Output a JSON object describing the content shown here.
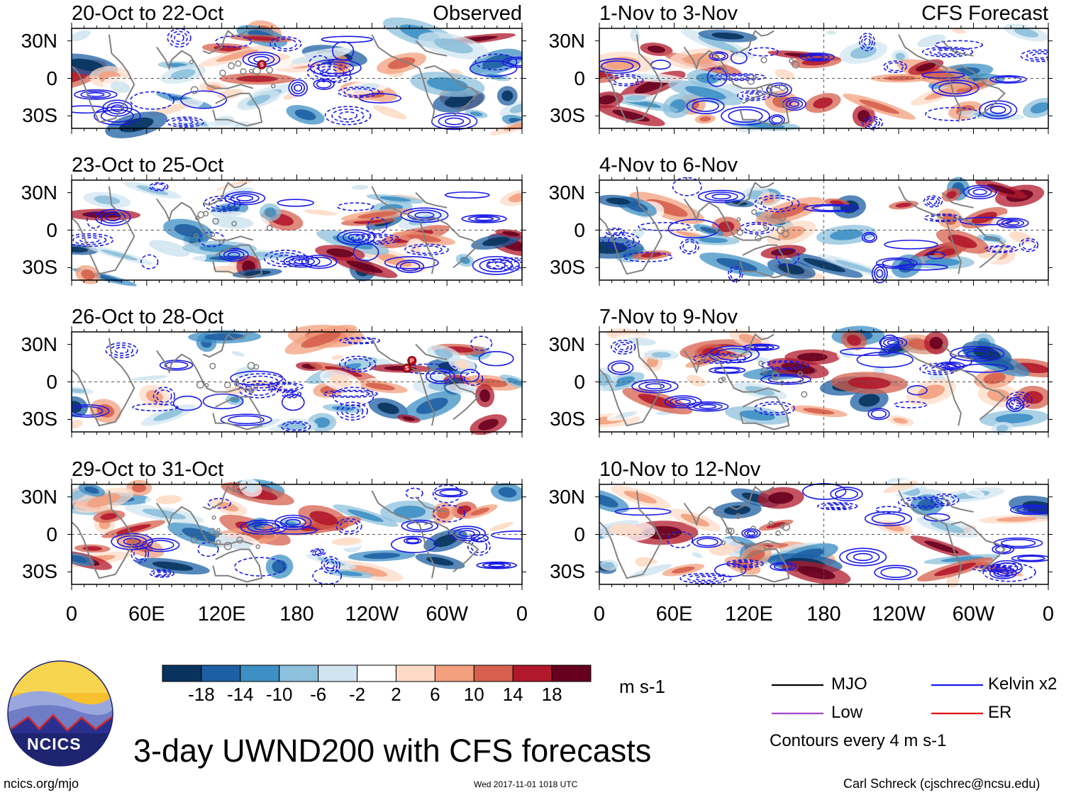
{
  "chart_data": {
    "type": "heatmap",
    "variable": "UWND200",
    "panel_title_left_observed": "Observed",
    "panel_title_left_forecast": "CFS Forecast",
    "y_ticks": [
      "30N",
      "0",
      "30S"
    ],
    "x_ticks": [
      "0",
      "60E",
      "120E",
      "180",
      "120W",
      "60W",
      "0"
    ],
    "ylim": [
      -40,
      40
    ],
    "xlim": [
      0,
      360
    ],
    "panels": [
      {
        "id": "obs-1",
        "column": "observed",
        "row": 0,
        "title": "20-Oct to 22-Oct",
        "label": "Observed",
        "storms": [
          {
            "lon": 152,
            "lat": 11,
            "code": "S"
          }
        ]
      },
      {
        "id": "obs-2",
        "column": "observed",
        "row": 1,
        "title": "23-Oct to 25-Oct",
        "label": "",
        "storms": []
      },
      {
        "id": "obs-3",
        "column": "observed",
        "row": 2,
        "title": "26-Oct to 28-Oct",
        "label": "",
        "storms": [
          {
            "lon": 268,
            "lat": 11,
            "code": "S"
          },
          {
            "lon": 272,
            "lat": 17,
            "code": "P"
          }
        ]
      },
      {
        "id": "obs-4",
        "column": "observed",
        "row": 3,
        "title": "29-Oct to 31-Oct",
        "label": "",
        "storms": []
      },
      {
        "id": "fc-1",
        "column": "forecast",
        "row": 0,
        "title": "1-Nov to 3-Nov",
        "label": "CFS Forecast",
        "storms": []
      },
      {
        "id": "fc-2",
        "column": "forecast",
        "row": 1,
        "title": "4-Nov to 6-Nov",
        "label": "",
        "storms": []
      },
      {
        "id": "fc-3",
        "column": "forecast",
        "row": 2,
        "title": "7-Nov to 9-Nov",
        "label": "",
        "storms": []
      },
      {
        "id": "fc-4",
        "column": "forecast",
        "row": 3,
        "title": "10-Nov to 12-Nov",
        "label": "",
        "storms": []
      }
    ],
    "colorbar": {
      "levels": [
        "-18",
        "-14",
        "-10",
        "-6",
        "-2",
        "2",
        "6",
        "10",
        "14",
        "18"
      ],
      "colors": [
        "#08335e",
        "#1d5fa3",
        "#3e8fc4",
        "#8cc0dc",
        "#d1e5f0",
        "#ffffff",
        "#fddbc7",
        "#f2a07e",
        "#d6604d",
        "#b2182b",
        "#67001f"
      ],
      "units": "m s-1"
    },
    "legend": [
      {
        "name": "MJO",
        "color": "#000000"
      },
      {
        "name": "Kelvin x2",
        "color": "#1a1ae6"
      },
      {
        "name": "Low",
        "color": "#a347c9"
      },
      {
        "name": "ER",
        "color": "#e01010"
      }
    ],
    "contour_note": "Contours every 4 m s-1"
  },
  "footer": {
    "logo_text": "NCICS",
    "main_title": "3-day UWND200 with CFS forecasts",
    "url": "ncics.org/mjo",
    "timestamp": "Wed 2017-11-01 1018 UTC",
    "credit": "Carl Schreck (cjschrec@ncsu.edu)"
  }
}
